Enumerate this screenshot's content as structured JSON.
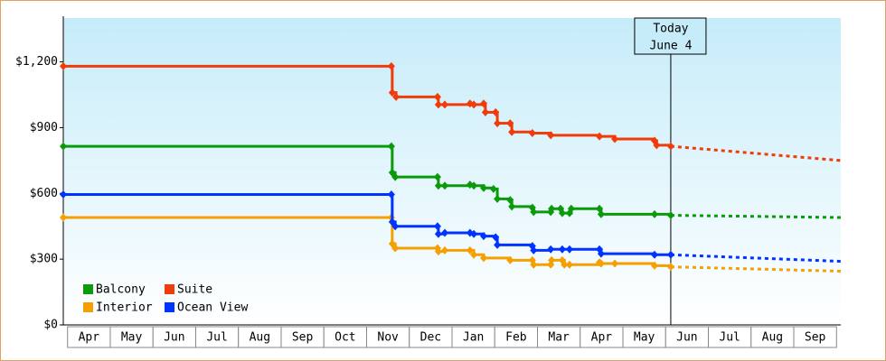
{
  "chart_data": {
    "type": "step",
    "ylim": [
      0,
      1400
    ],
    "yticks": [
      {
        "value": 0,
        "label": "$0"
      },
      {
        "value": 300,
        "label": "$300"
      },
      {
        "value": 600,
        "label": "$600"
      },
      {
        "value": 900,
        "label": "$900"
      },
      {
        "value": 1200,
        "label": "$1,200"
      }
    ],
    "xlim": [
      -0.1,
      18.1
    ],
    "xticks": [
      {
        "value": 0.5,
        "label": "Apr"
      },
      {
        "value": 1.5,
        "label": "May"
      },
      {
        "value": 2.5,
        "label": "Jun"
      },
      {
        "value": 3.5,
        "label": "Jul"
      },
      {
        "value": 4.5,
        "label": "Aug"
      },
      {
        "value": 5.5,
        "label": "Sep"
      },
      {
        "value": 6.5,
        "label": "Oct"
      },
      {
        "value": 7.5,
        "label": "Nov"
      },
      {
        "value": 8.5,
        "label": "Dec"
      },
      {
        "value": 9.5,
        "label": "Jan"
      },
      {
        "value": 10.5,
        "label": "Feb"
      },
      {
        "value": 11.5,
        "label": "Mar"
      },
      {
        "value": 12.5,
        "label": "Apr"
      },
      {
        "value": 13.5,
        "label": "May"
      },
      {
        "value": 14.5,
        "label": "Jun"
      },
      {
        "value": 15.5,
        "label": "Jul"
      },
      {
        "value": 16.5,
        "label": "Aug"
      },
      {
        "value": 17.5,
        "label": "Sep"
      }
    ],
    "grid": false,
    "legend": "lower left",
    "today": {
      "label": [
        "Today",
        "June 4"
      ],
      "x": 14.12
    },
    "series": [
      {
        "name": "Balcony",
        "color": "#0a9a0a",
        "x": [
          -0.1,
          7.58,
          7.6,
          7.67,
          8.66,
          8.68,
          8.83,
          9.42,
          9.51,
          9.74,
          9.97,
          10.06,
          10.36,
          10.4,
          10.88,
          10.91,
          11.31,
          11.33,
          11.54,
          11.58,
          11.75,
          11.79,
          12.45,
          12.49,
          13.74,
          14.12
        ],
        "values": [
          815,
          815,
          695,
          675,
          675,
          635,
          635,
          640,
          635,
          625,
          620,
          575,
          570,
          540,
          535,
          515,
          515,
          530,
          530,
          510,
          510,
          530,
          530,
          505,
          505,
          500
        ],
        "projection": {
          "x": [
            14.12,
            18.1
          ],
          "values": [
            500,
            490
          ]
        }
      },
      {
        "name": "Suite",
        "color": "#f03c0a",
        "x": [
          -0.1,
          7.58,
          7.6,
          7.69,
          8.66,
          8.68,
          8.83,
          9.42,
          9.51,
          9.74,
          9.78,
          10.02,
          10.06,
          10.36,
          10.4,
          10.88,
          11.31,
          12.45,
          12.81,
          13.74,
          13.79,
          14.12
        ],
        "values": [
          1180,
          1180,
          1060,
          1040,
          1040,
          1005,
          1005,
          1010,
          1005,
          1010,
          970,
          970,
          920,
          920,
          880,
          875,
          865,
          860,
          848,
          840,
          820,
          815
        ],
        "projection": {
          "x": [
            14.12,
            18.1
          ],
          "values": [
            815,
            750
          ]
        }
      },
      {
        "name": "Interior",
        "color": "#f5a000",
        "x": [
          -0.1,
          7.58,
          7.6,
          7.67,
          8.66,
          8.68,
          8.83,
          9.42,
          9.51,
          9.74,
          10.36,
          10.88,
          10.91,
          11.31,
          11.33,
          11.58,
          11.63,
          11.75,
          12.45,
          12.49,
          12.81,
          13.74,
          14.12
        ],
        "values": [
          490,
          490,
          370,
          350,
          350,
          335,
          340,
          340,
          320,
          305,
          295,
          295,
          275,
          275,
          295,
          295,
          275,
          275,
          285,
          280,
          280,
          270,
          265
        ],
        "projection": {
          "x": [
            14.12,
            18.1
          ],
          "values": [
            265,
            245
          ]
        }
      },
      {
        "name": "Ocean View",
        "color": "#0033ff",
        "x": [
          -0.1,
          7.58,
          7.6,
          7.67,
          8.66,
          8.68,
          8.83,
          9.42,
          9.51,
          9.74,
          10.02,
          10.06,
          10.88,
          10.91,
          11.31,
          11.58,
          11.75,
          12.45,
          12.49,
          13.74,
          14.12
        ],
        "values": [
          595,
          595,
          470,
          450,
          450,
          415,
          420,
          420,
          415,
          405,
          400,
          365,
          360,
          340,
          345,
          345,
          345,
          345,
          325,
          320,
          320
        ],
        "projection": {
          "x": [
            14.12,
            18.1
          ],
          "values": [
            320,
            290
          ]
        }
      }
    ]
  }
}
